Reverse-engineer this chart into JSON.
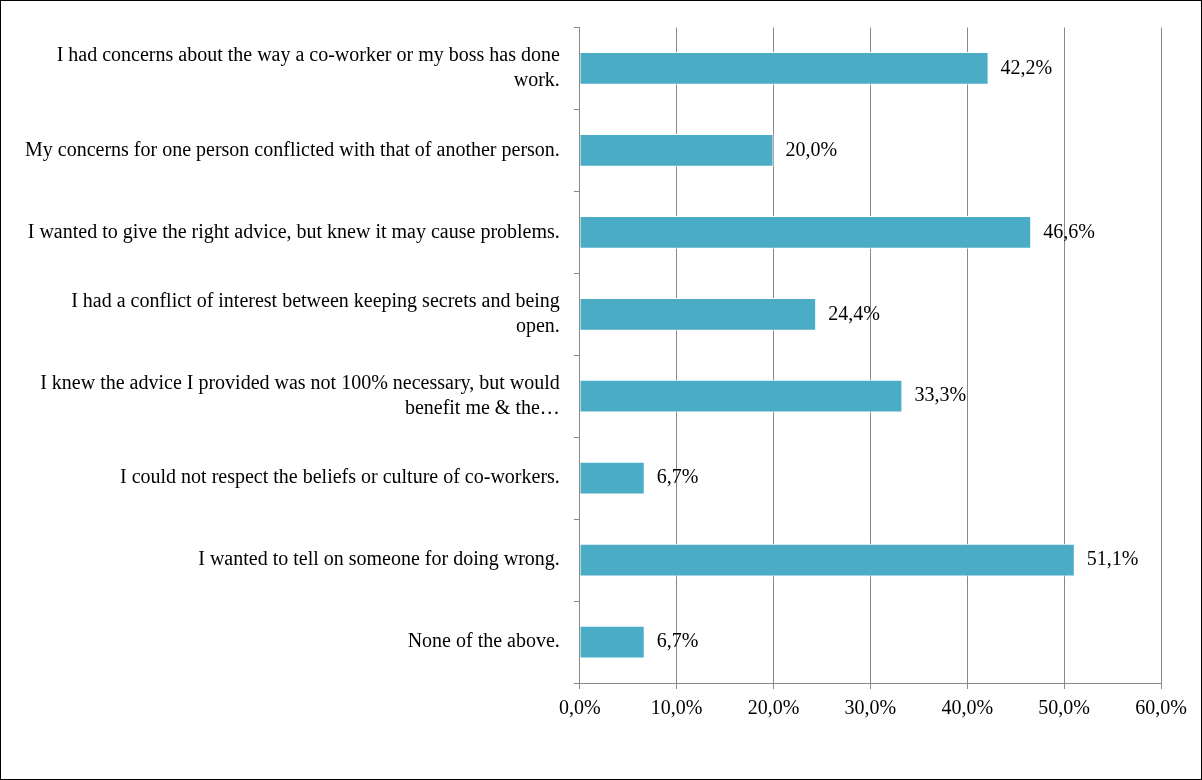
{
  "chart_data": {
    "type": "bar",
    "orientation": "horizontal",
    "categories": [
      "I had concerns about the way a co-worker or my boss has done work.",
      "My concerns for one person conflicted with that of another person.",
      "I wanted to give the right advice, but knew it may cause problems.",
      "I had a conflict of interest between keeping secrets and being open.",
      "I knew the advice I provided was not 100% necessary, but would benefit me & the…",
      "I could not respect the beliefs or culture of co-workers.",
      "I wanted to tell on someone for doing wrong.",
      "None of the above."
    ],
    "values": [
      42.2,
      20.0,
      46.6,
      24.4,
      33.3,
      6.7,
      51.1,
      6.7
    ],
    "value_labels": [
      "42,2%",
      "20,0%",
      "46,6%",
      "24,4%",
      "33,3%",
      "6,7%",
      "51,1%",
      "6,7%"
    ],
    "color": "#4bacc6",
    "xlim": [
      0,
      60
    ],
    "xticks": [
      {
        "value": 0,
        "label": "0,0%"
      },
      {
        "value": 10,
        "label": "10,0%"
      },
      {
        "value": 20,
        "label": "20,0%"
      },
      {
        "value": 30,
        "label": "30,0%"
      },
      {
        "value": 40,
        "label": "40,0%"
      },
      {
        "value": 50,
        "label": "50,0%"
      },
      {
        "value": 60,
        "label": "60,0%"
      }
    ],
    "grid": "x"
  }
}
